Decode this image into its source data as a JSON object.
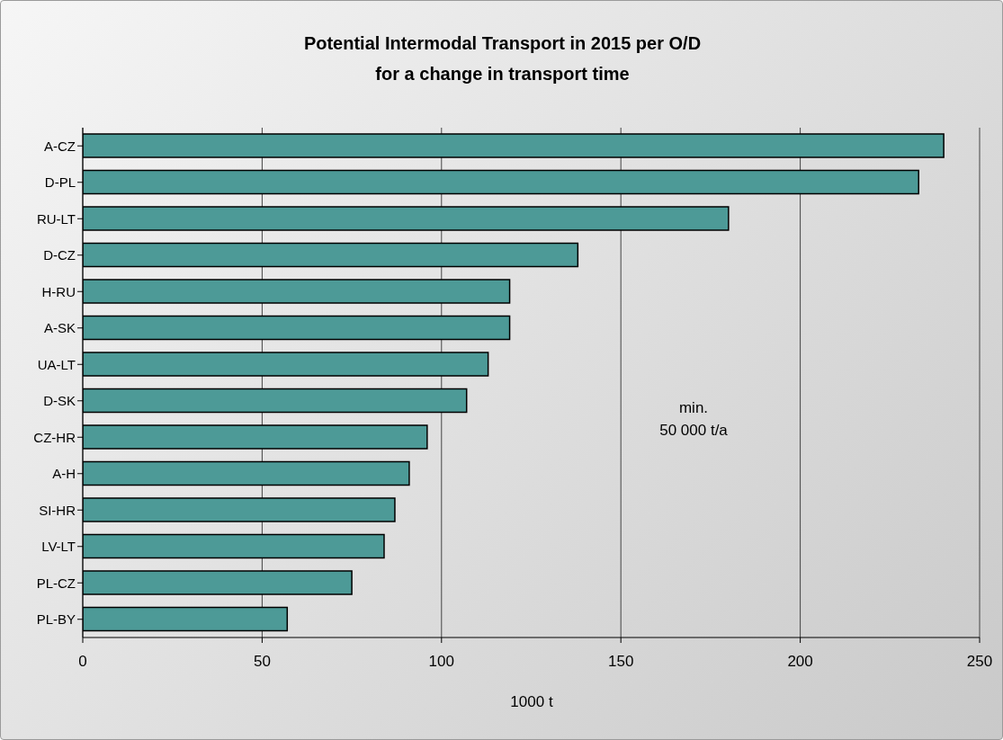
{
  "chart_data": {
    "type": "bar",
    "orientation": "horizontal",
    "title": "Potential Intermodal Transport in 2015 per O/D",
    "subtitle": "for a change in transport time",
    "xlabel": "1000 t",
    "categories": [
      "A-CZ",
      "D-PL",
      "RU-LT",
      "D-CZ",
      "H-RU",
      "A-SK",
      "UA-LT",
      "D-SK",
      "CZ-HR",
      "A-H",
      "SI-HR",
      "LV-LT",
      "PL-CZ",
      "PL-BY"
    ],
    "values": [
      240,
      233,
      180,
      138,
      119,
      119,
      113,
      107,
      96,
      91,
      87,
      84,
      75,
      57
    ],
    "color": "#4d9a97",
    "xlim": [
      0,
      250
    ],
    "xticks": [
      0,
      50,
      100,
      150,
      200,
      250
    ],
    "grid": "x",
    "annotations": [
      "min.\n50 000 t/a"
    ]
  }
}
